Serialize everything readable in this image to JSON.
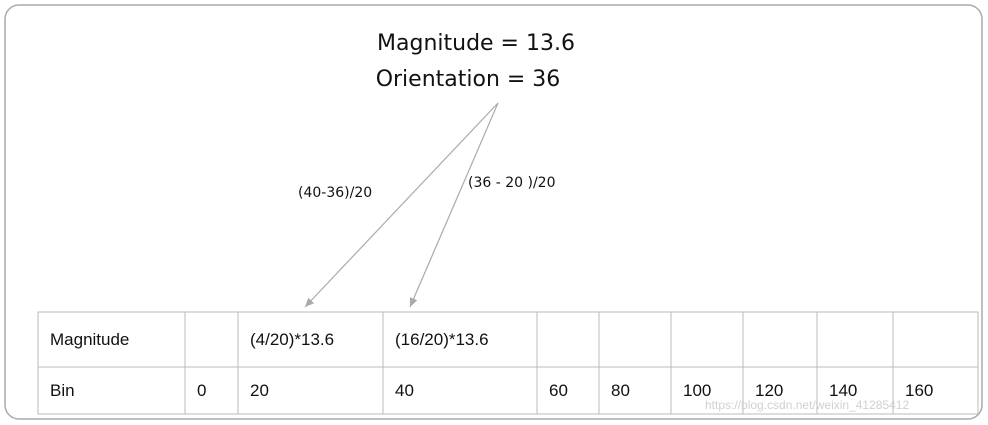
{
  "header": {
    "magnitude": "Magnitude = 13.6",
    "orientation": "Orientation = 36"
  },
  "arrows": [
    {
      "label": "(40-36)/20"
    },
    {
      "label": "(36 - 20 )/20"
    }
  ],
  "table": {
    "rows": [
      [
        "Magnitude",
        null,
        "(4/20)*13.6",
        "(16/20)*13.6",
        null,
        null,
        null,
        null,
        null,
        null
      ],
      [
        "Bin",
        "0",
        "20",
        "40",
        "60",
        "80",
        "100",
        "120",
        "140",
        "160"
      ]
    ]
  },
  "watermark": "https://blog.csdn.net/weixin_41285412"
}
